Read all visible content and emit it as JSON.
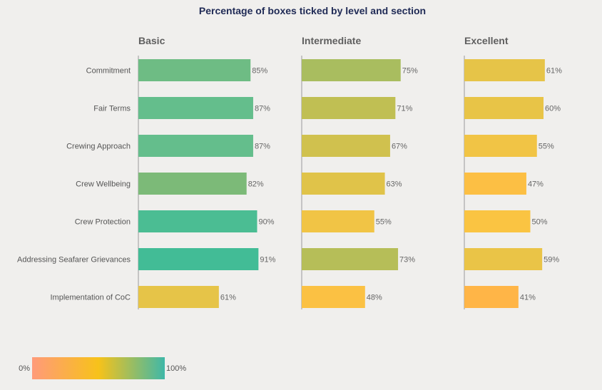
{
  "chart_data": {
    "type": "bar",
    "orientation": "horizontal",
    "title": "Percentage of boxes ticked by level and section",
    "categories": [
      "Commitment",
      "Fair Terms",
      "Crewing Approach",
      "Crew Wellbeing",
      "Crew Protection",
      "Addressing Seafarer Grievances",
      "Implementation of CoC"
    ],
    "series": [
      {
        "name": "Basic",
        "values": [
          85,
          87,
          87,
          82,
          90,
          91,
          61
        ]
      },
      {
        "name": "Intermediate",
        "values": [
          75,
          71,
          67,
          63,
          55,
          73,
          48
        ]
      },
      {
        "name": "Excellent",
        "values": [
          61,
          60,
          55,
          47,
          50,
          59,
          41
        ]
      }
    ],
    "value_suffix": "%",
    "xlim": [
      0,
      100
    ],
    "legend": {
      "type": "color-scale",
      "min_label": "0%",
      "max_label": "100%",
      "stops": [
        "#ff9a7a",
        "#f7c21a",
        "#3fb8a8"
      ]
    },
    "colors": {
      "low": "#ffb347",
      "mid": "#f9c440",
      "high": "#3bbf99"
    }
  }
}
